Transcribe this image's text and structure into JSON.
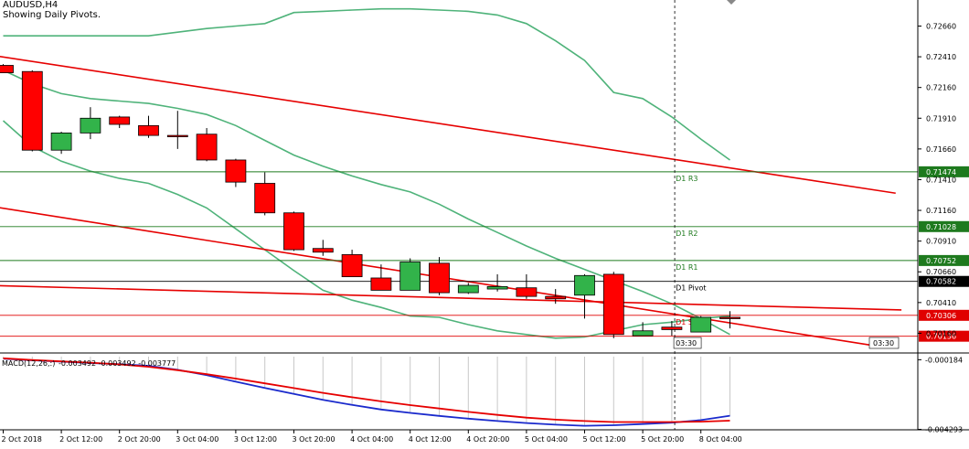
{
  "header": {
    "symbol": "AUDUSD,H4",
    "subtitle": "Showing Daily Pivots."
  },
  "colors": {
    "up": "#32b34a",
    "down": "#ff0000",
    "bollinger": "#4fb37a",
    "trendline": "#e60000",
    "resistance": "#1e7a1e",
    "support": "#e00000",
    "macd_main": "#1a2acc",
    "macd_signal": "#e60000"
  },
  "chart_data": {
    "type": "candlestick",
    "price_axis": {
      "ticks": [
        "0.72660",
        "0.72410",
        "0.72160",
        "0.71910",
        "0.71660",
        "0.71410",
        "0.71160",
        "0.70910",
        "0.70660",
        "0.70410",
        "0.70160"
      ],
      "ylim": [
        0.70007,
        0.72872
      ]
    },
    "time_axis": {
      "labels": [
        "2 Oct 2018",
        "2 Oct 12:00",
        "2 Oct 20:00",
        "3 Oct 04:00",
        "3 Oct 12:00",
        "3 Oct 20:00",
        "4 Oct 04:00",
        "4 Oct 12:00",
        "4 Oct 20:00",
        "5 Oct 04:00",
        "5 Oct 12:00",
        "5 Oct 20:00",
        "8 Oct 04:00"
      ]
    },
    "candles": [
      {
        "o": 0.7234,
        "h": 0.7235,
        "l": 0.7228,
        "c": 0.7228
      },
      {
        "o": 0.7229,
        "h": 0.723,
        "l": 0.7164,
        "c": 0.7165
      },
      {
        "o": 0.7165,
        "h": 0.718,
        "l": 0.7162,
        "c": 0.7179
      },
      {
        "o": 0.7179,
        "h": 0.72,
        "l": 0.7174,
        "c": 0.7191
      },
      {
        "o": 0.7192,
        "h": 0.7193,
        "l": 0.7183,
        "c": 0.7186
      },
      {
        "o": 0.7185,
        "h": 0.7193,
        "l": 0.7175,
        "c": 0.7177
      },
      {
        "o": 0.7177,
        "h": 0.7197,
        "l": 0.7166,
        "c": 0.7176
      },
      {
        "o": 0.7178,
        "h": 0.7183,
        "l": 0.7156,
        "c": 0.7157
      },
      {
        "o": 0.7157,
        "h": 0.7158,
        "l": 0.7135,
        "c": 0.7139
      },
      {
        "o": 0.7138,
        "h": 0.7147,
        "l": 0.7112,
        "c": 0.7114
      },
      {
        "o": 0.7114,
        "h": 0.7115,
        "l": 0.7083,
        "c": 0.7084
      },
      {
        "o": 0.7085,
        "h": 0.7092,
        "l": 0.7079,
        "c": 0.7082
      },
      {
        "o": 0.708,
        "h": 0.7084,
        "l": 0.7062,
        "c": 0.7062
      },
      {
        "o": 0.7061,
        "h": 0.7072,
        "l": 0.7053,
        "c": 0.7051
      },
      {
        "o": 0.7051,
        "h": 0.7077,
        "l": 0.7051,
        "c": 0.7074
      },
      {
        "o": 0.7073,
        "h": 0.7078,
        "l": 0.7047,
        "c": 0.7049
      },
      {
        "o": 0.7049,
        "h": 0.7057,
        "l": 0.7048,
        "c": 0.7055
      },
      {
        "o": 0.7052,
        "h": 0.7064,
        "l": 0.705,
        "c": 0.7054
      },
      {
        "o": 0.7053,
        "h": 0.7064,
        "l": 0.7044,
        "c": 0.7046
      },
      {
        "o": 0.7046,
        "h": 0.7052,
        "l": 0.704,
        "c": 0.7044
      },
      {
        "o": 0.7047,
        "h": 0.7064,
        "l": 0.7028,
        "c": 0.7063
      },
      {
        "o": 0.7064,
        "h": 0.7066,
        "l": 0.7012,
        "c": 0.7015
      },
      {
        "o": 0.7014,
        "h": 0.7025,
        "l": 0.7014,
        "c": 0.7018
      },
      {
        "o": 0.7021,
        "h": 0.7026,
        "l": 0.7014,
        "c": 0.7019
      },
      {
        "o": 0.7017,
        "h": 0.703,
        "l": 0.7017,
        "c": 0.7029
      },
      {
        "o": 0.7029,
        "h": 0.7034,
        "l": 0.702,
        "c": 0.7028
      }
    ],
    "pivots": [
      {
        "label": "D1 R3",
        "value": 0.71474,
        "tag": "0.71474",
        "kind": "resistance"
      },
      {
        "label": "D1 R2",
        "value": 0.71028,
        "tag": "0.71028",
        "kind": "resistance"
      },
      {
        "label": "D1 R1",
        "value": 0.70752,
        "tag": "0.70752",
        "kind": "resistance"
      },
      {
        "label": "D1 Pivot",
        "value": 0.70582,
        "tag": "0.70582",
        "kind": "pivot"
      },
      {
        "label": "D1 S1",
        "value": 0.70306,
        "tag": "0.70306",
        "kind": "support"
      },
      {
        "label": "D1 S2",
        "value": 0.70136,
        "tag": "0.70136",
        "kind": "support"
      }
    ],
    "current_price_tag": "0.70582",
    "bollinger": {
      "upper": [
        0.7258,
        0.7258,
        0.7258,
        0.7258,
        0.7258,
        0.7258,
        0.7261,
        0.7264,
        0.7266,
        0.7268,
        0.7277,
        0.7278,
        0.7279,
        0.728,
        0.728,
        0.7279,
        0.7278,
        0.7275,
        0.7268,
        0.7254,
        0.7238,
        0.7212,
        0.7207,
        0.7192,
        0.7174,
        0.7157
      ],
      "middle": [
        0.723,
        0.7219,
        0.7211,
        0.7207,
        0.7205,
        0.7203,
        0.7199,
        0.7194,
        0.7185,
        0.7173,
        0.7161,
        0.7152,
        0.7144,
        0.7137,
        0.7131,
        0.7121,
        0.7109,
        0.7098,
        0.7087,
        0.7077,
        0.7068,
        0.7059,
        0.705,
        0.704,
        0.7028,
        0.7015
      ],
      "lower": [
        0.7189,
        0.7168,
        0.7156,
        0.7148,
        0.7142,
        0.7138,
        0.7129,
        0.7118,
        0.7101,
        0.7084,
        0.7067,
        0.7051,
        0.7043,
        0.7037,
        0.703,
        0.7029,
        0.7023,
        0.7018,
        0.7015,
        0.7012,
        0.7013,
        0.7018,
        0.7023,
        0.7025,
        0.7028,
        0.703
      ]
    },
    "trendlines": [
      {
        "from": {
          "bar": -0.6,
          "price": 0.7243
        },
        "to": {
          "bar": 30.7,
          "price": 0.713
        }
      },
      {
        "from": {
          "bar": -0.6,
          "price": 0.712
        },
        "to": {
          "bar": 30.2,
          "price": 0.7005
        }
      },
      {
        "from": {
          "bar": -0.6,
          "price": 0.7055
        },
        "to": {
          "bar": 30.9,
          "price": 0.7035
        }
      }
    ],
    "time_marker": {
      "bar": 23.1,
      "tag": "03:30"
    },
    "end_marker": {
      "tag": "03:30"
    },
    "macd": {
      "label": "MACD(12,26,9) -0.003492 -0.003492 -0.003777",
      "label_prefix": "MACD(12,26,:)",
      "ticks": [
        "-0.000184",
        "-0.004293"
      ],
      "ylim": [
        -0.00432,
        0.00016
      ],
      "bars": [
        -0.00012,
        -0.00022,
        -0.0003,
        -0.00038,
        -0.00045,
        -0.00054,
        -0.00078,
        -0.0011,
        -0.00148,
        -0.00185,
        -0.0022,
        -0.00255,
        -0.00285,
        -0.00312,
        -0.00332,
        -0.0035,
        -0.00366,
        -0.0038,
        -0.00392,
        -0.00402,
        -0.00408,
        -0.00405,
        -0.00398,
        -0.0039,
        -0.00375,
        -0.00349
      ],
      "signal": [
        -0.0001,
        -0.0002,
        -0.00028,
        -0.00036,
        -0.00046,
        -0.0006,
        -0.0008,
        -0.00104,
        -0.0013,
        -0.00158,
        -0.00186,
        -0.00214,
        -0.0024,
        -0.00264,
        -0.00286,
        -0.00306,
        -0.00326,
        -0.00344,
        -0.0036,
        -0.00372,
        -0.0038,
        -0.00386,
        -0.00386,
        -0.00386,
        -0.00384,
        -0.00378
      ]
    }
  }
}
